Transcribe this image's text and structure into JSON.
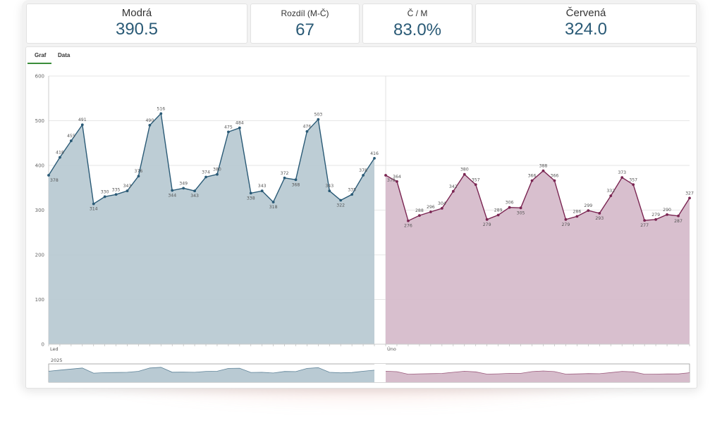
{
  "kpis": [
    {
      "label": "Modrá",
      "value": "390.5"
    },
    {
      "label": "Rozdíl (M-Č)",
      "value": "67"
    },
    {
      "label": "Č / M",
      "value": "83.0%"
    },
    {
      "label": "Červená",
      "value": "324.0"
    }
  ],
  "tabs": [
    {
      "label": "Graf",
      "active": true
    },
    {
      "label": "Data",
      "active": false
    }
  ],
  "colors": {
    "blue_line": "#2a5a76",
    "blue_fill": "#b9cad3",
    "red_line": "#7a2552",
    "red_fill": "#d6bccb",
    "grid": "#e6e6e6"
  },
  "chart_data": {
    "type": "area",
    "ylim": [
      0,
      600
    ],
    "y_ticks": [
      0,
      100,
      200,
      300,
      400,
      500,
      600
    ],
    "x_tick_labels": [
      "Led",
      "Úno"
    ],
    "year_label": "2025",
    "grid": true,
    "series": [
      {
        "values": [
          378,
          418,
          455,
          491,
          314,
          330,
          335,
          343,
          376,
          490,
          516,
          344,
          349,
          343,
          374,
          380,
          475,
          484,
          338,
          343,
          318,
          372,
          368,
          476,
          503,
          343,
          322,
          335,
          378,
          416
        ]
      },
      {
        "values": [
          378,
          364,
          276,
          288,
          296,
          304,
          342,
          380,
          357,
          279,
          289,
          306,
          305,
          366,
          388,
          366,
          279,
          286,
          299,
          293,
          332,
          373,
          357,
          277,
          279,
          290,
          287,
          327
        ]
      }
    ]
  }
}
